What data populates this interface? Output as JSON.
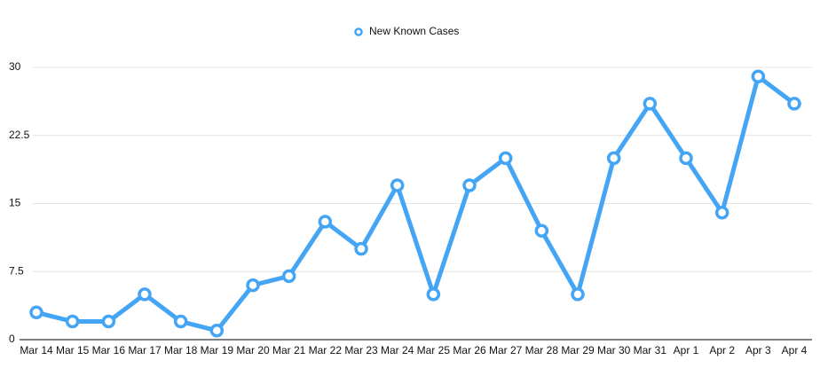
{
  "chart_data": {
    "type": "line",
    "categories": [
      "Mar 14",
      "Mar 15",
      "Mar 16",
      "Mar 17",
      "Mar 18",
      "Mar 19",
      "Mar 20",
      "Mar 21",
      "Mar 22",
      "Mar 23",
      "Mar 24",
      "Mar 25",
      "Mar 26",
      "Mar 27",
      "Mar 28",
      "Mar 29",
      "Mar 30",
      "Mar 31",
      "Apr 1",
      "Apr 2",
      "Apr 3",
      "Apr 4"
    ],
    "series": [
      {
        "name": "New Known Cases",
        "color": "#45a5f5",
        "values": [
          3,
          2,
          2,
          5,
          2,
          1,
          6,
          7,
          13,
          10,
          17,
          5,
          17,
          20,
          12,
          5,
          20,
          26,
          20,
          14,
          29,
          26
        ]
      }
    ],
    "ylim": [
      0,
      30
    ],
    "yticks": [
      0,
      7.5,
      15,
      22.5,
      30
    ],
    "grid": true,
    "legend": "top"
  }
}
